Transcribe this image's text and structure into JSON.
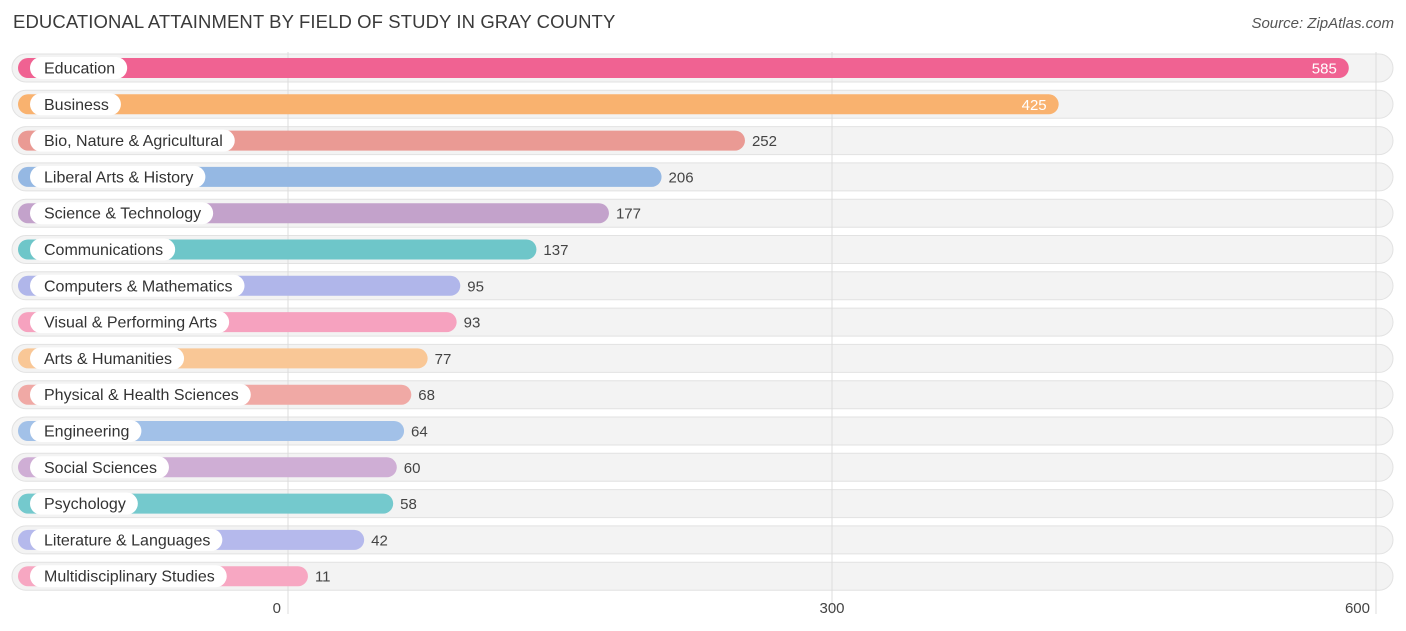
{
  "chart_data": {
    "type": "bar",
    "orientation": "horizontal",
    "title": "EDUCATIONAL ATTAINMENT BY FIELD OF STUDY IN GRAY COUNTY",
    "source": "Source: ZipAtlas.com",
    "xlabel": "",
    "ylabel": "",
    "xlim": [
      0,
      600
    ],
    "ticks": [
      0,
      300,
      600
    ],
    "tick_labels": [
      "0",
      "300",
      "600"
    ],
    "categories": [
      "Education",
      "Business",
      "Bio, Nature & Agricultural",
      "Liberal Arts & History",
      "Science & Technology",
      "Communications",
      "Computers & Mathematics",
      "Visual & Performing Arts",
      "Arts & Humanities",
      "Physical & Health Sciences",
      "Engineering",
      "Social Sciences",
      "Psychology",
      "Literature & Languages",
      "Multidisciplinary Studies"
    ],
    "values": [
      585,
      425,
      252,
      206,
      177,
      137,
      95,
      93,
      77,
      68,
      64,
      60,
      58,
      42,
      11
    ],
    "value_labels": [
      "585",
      "425",
      "252",
      "206",
      "177",
      "137",
      "95",
      "93",
      "77",
      "68",
      "64",
      "60",
      "58",
      "42",
      "11"
    ],
    "colors": [
      "#f06292",
      "#f9b26f",
      "#ea9a94",
      "#95b8e3",
      "#c3a2cb",
      "#6ec6c9",
      "#b0b6ea",
      "#f6a2bf",
      "#f9c796",
      "#f0a9a5",
      "#a2c1e8",
      "#cfaed5",
      "#74c9cd",
      "#b5b9ec",
      "#f7a7c2"
    ],
    "value_label_inside": [
      true,
      true,
      false,
      false,
      false,
      false,
      false,
      false,
      false,
      false,
      false,
      false,
      false,
      false,
      false
    ],
    "grid": true
  }
}
